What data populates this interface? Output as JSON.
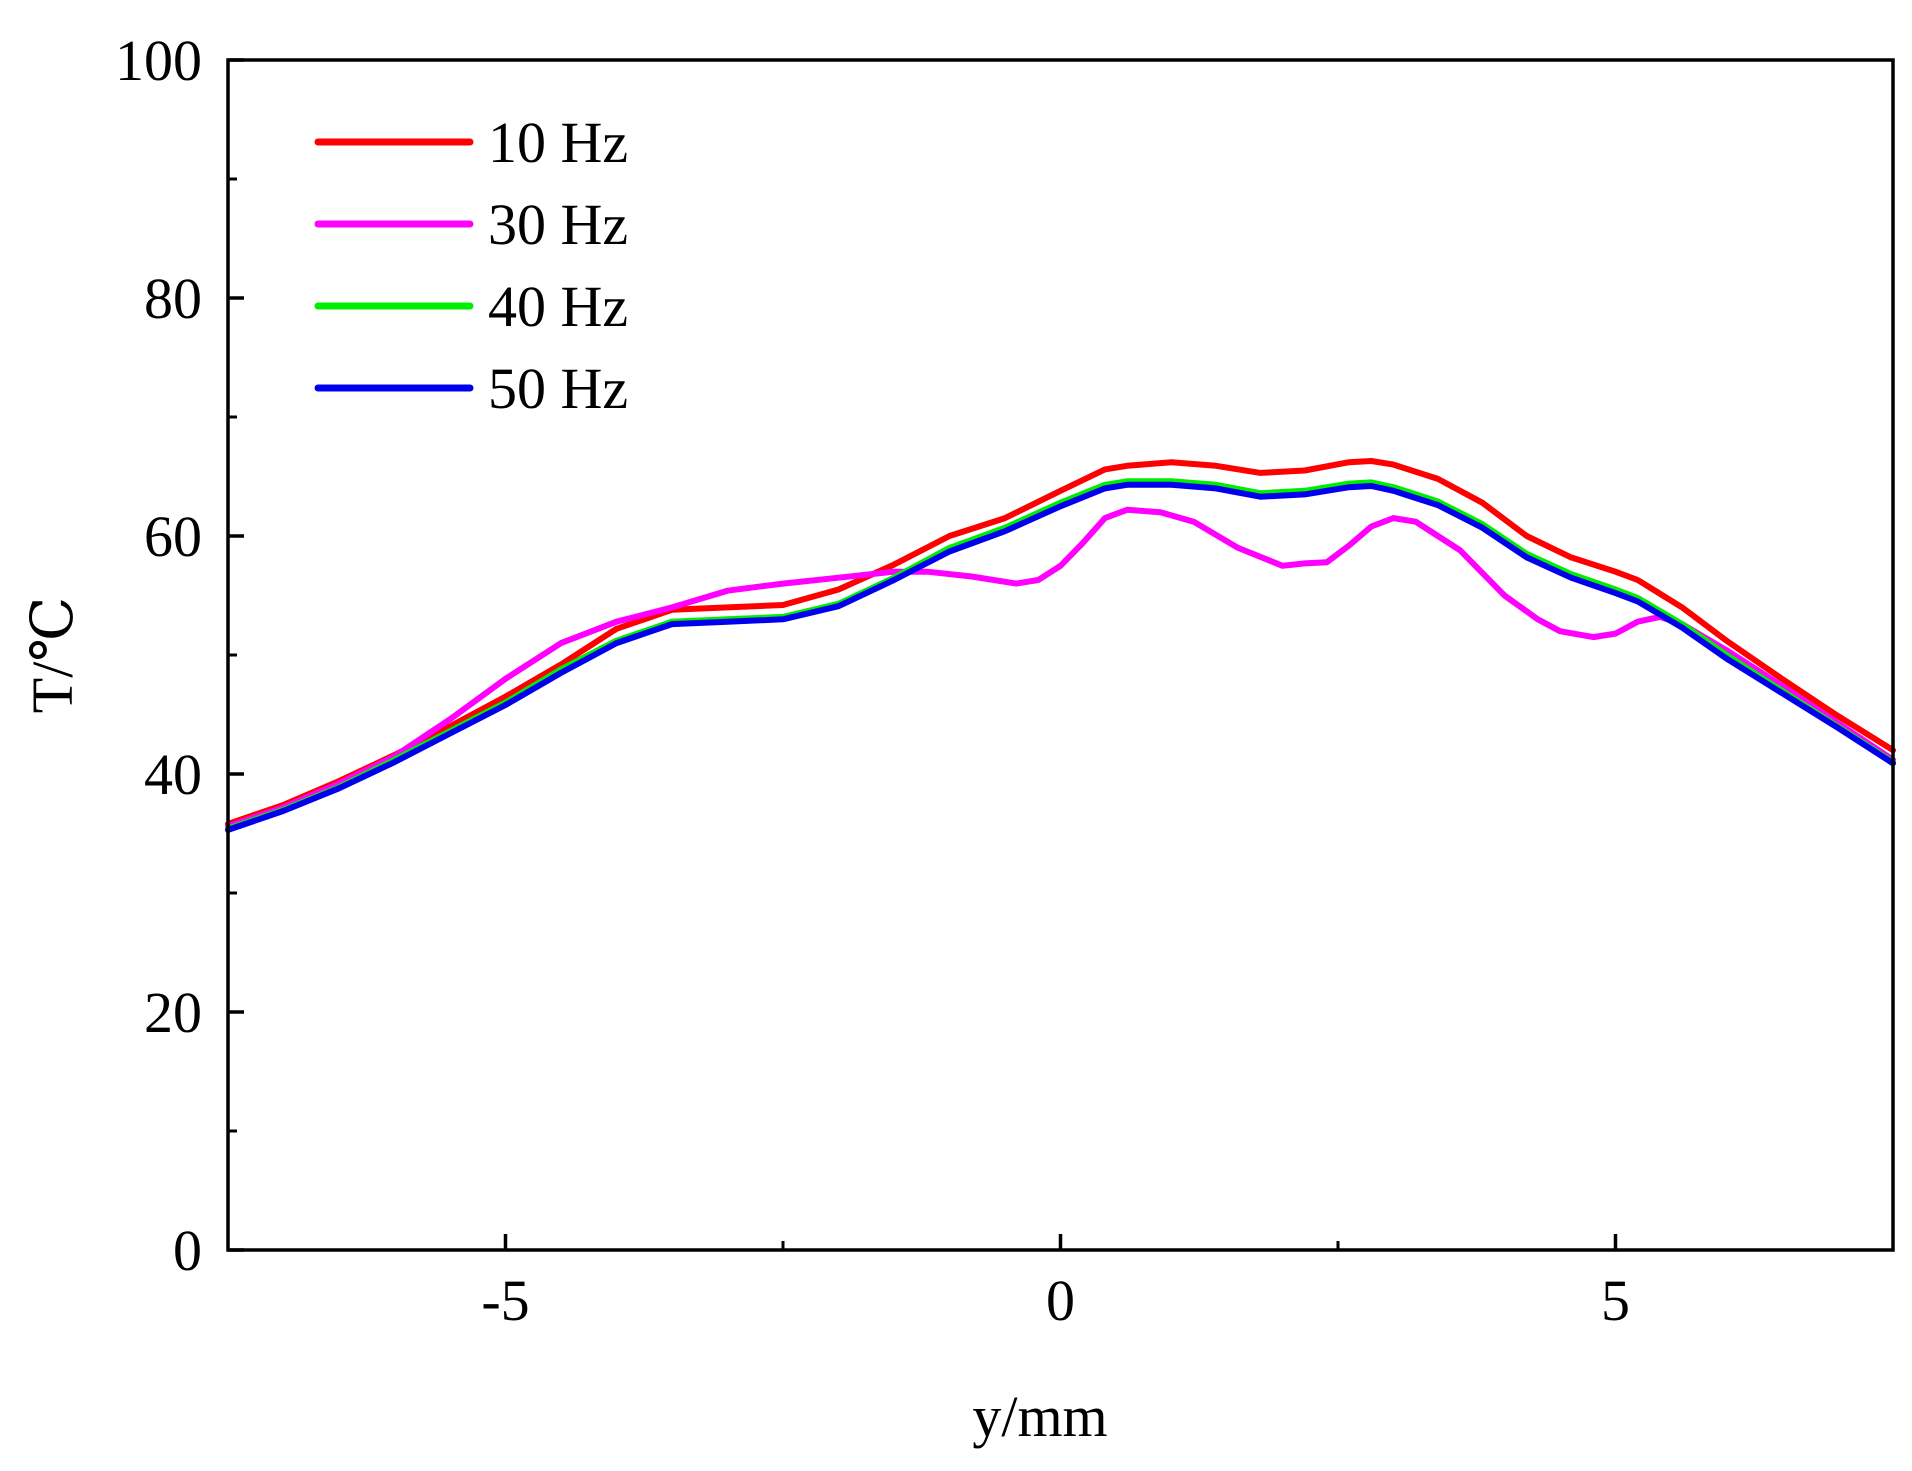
{
  "chart_data": {
    "type": "line",
    "title": "",
    "xlabel": "y/mm",
    "ylabel": "T/℃",
    "xlim": [
      -7.5,
      7.5
    ],
    "ylim": [
      0,
      100
    ],
    "xticks": [
      -5,
      0,
      5
    ],
    "xtick_labels": [
      "-5",
      "0",
      "5"
    ],
    "xminor": [
      -2.5,
      2.5
    ],
    "yticks": [
      0,
      20,
      40,
      60,
      80,
      100
    ],
    "ytick_labels": [
      "0",
      "20",
      "40",
      "60",
      "80",
      "100"
    ],
    "yminor": [
      10,
      30,
      50,
      70,
      90
    ],
    "grid": false,
    "legend_position": "top-left",
    "series": [
      {
        "name": "10 Hz",
        "color": "#ff0000",
        "x": [
          -7.5,
          -7.0,
          -6.5,
          -6.0,
          -5.5,
          -5.0,
          -4.5,
          -4.0,
          -3.5,
          -3.0,
          -2.5,
          -2.0,
          -1.5,
          -1.0,
          -0.5,
          0.0,
          0.4,
          0.6,
          1.0,
          1.4,
          1.8,
          2.2,
          2.6,
          2.8,
          3.0,
          3.4,
          3.8,
          4.2,
          4.6,
          5.0,
          5.2,
          5.6,
          6.0,
          6.5,
          7.0,
          7.5
        ],
        "y": [
          35.8,
          37.4,
          39.4,
          41.6,
          44.0,
          46.5,
          49.2,
          52.2,
          53.8,
          54.0,
          54.2,
          55.5,
          57.6,
          60.0,
          61.5,
          63.8,
          65.6,
          65.9,
          66.2,
          65.9,
          65.3,
          65.5,
          66.2,
          66.3,
          66.0,
          64.8,
          62.8,
          60.0,
          58.2,
          57.0,
          56.3,
          54.0,
          51.2,
          48.0,
          44.9,
          42.0
        ]
      },
      {
        "name": "30 Hz",
        "color": "#ff00ff",
        "x": [
          -7.5,
          -7.0,
          -6.5,
          -6.0,
          -5.5,
          -5.0,
          -4.5,
          -4.0,
          -3.5,
          -3.0,
          -2.5,
          -2.0,
          -1.5,
          -1.2,
          -0.8,
          -0.4,
          -0.2,
          0.0,
          0.2,
          0.4,
          0.6,
          0.9,
          1.2,
          1.6,
          2.0,
          2.2,
          2.4,
          2.6,
          2.8,
          3.0,
          3.2,
          3.6,
          4.0,
          4.3,
          4.5,
          4.8,
          5.0,
          5.2,
          5.4,
          5.6,
          6.0,
          6.5,
          7.0,
          7.5
        ],
        "y": [
          35.6,
          37.2,
          39.2,
          41.5,
          44.6,
          48.0,
          51.0,
          52.8,
          54.0,
          55.4,
          56.0,
          56.5,
          57.0,
          57.0,
          56.6,
          56.0,
          56.3,
          57.5,
          59.4,
          61.5,
          62.2,
          62.0,
          61.2,
          59.0,
          57.5,
          57.7,
          57.8,
          59.2,
          60.8,
          61.5,
          61.2,
          58.8,
          55.0,
          53.0,
          52.0,
          51.5,
          51.8,
          52.8,
          53.2,
          52.6,
          50.4,
          47.4,
          44.3,
          41.2
        ]
      },
      {
        "name": "40 Hz",
        "color": "#00ee00",
        "x": [
          -7.5,
          -7.0,
          -6.5,
          -6.0,
          -5.5,
          -5.0,
          -4.5,
          -4.0,
          -3.5,
          -3.0,
          -2.5,
          -2.0,
          -1.5,
          -1.0,
          -0.5,
          0.0,
          0.4,
          0.6,
          1.0,
          1.4,
          1.8,
          2.2,
          2.6,
          2.8,
          3.0,
          3.4,
          3.8,
          4.2,
          4.6,
          5.0,
          5.2,
          5.6,
          6.0,
          6.5,
          7.0,
          7.5
        ],
        "y": [
          35.4,
          37.0,
          38.9,
          41.2,
          43.6,
          46.0,
          48.8,
          51.2,
          52.8,
          53.0,
          53.2,
          54.3,
          56.5,
          59.0,
          60.7,
          62.8,
          64.3,
          64.6,
          64.6,
          64.3,
          63.6,
          63.8,
          64.4,
          64.5,
          64.1,
          62.9,
          61.0,
          58.5,
          56.8,
          55.5,
          54.8,
          52.6,
          50.0,
          47.0,
          44.0,
          41.0
        ]
      },
      {
        "name": "50 Hz",
        "color": "#0000ee",
        "x": [
          -7.5,
          -7.0,
          -6.5,
          -6.0,
          -5.5,
          -5.0,
          -4.5,
          -4.0,
          -3.5,
          -3.0,
          -2.5,
          -2.0,
          -1.5,
          -1.0,
          -0.5,
          0.0,
          0.4,
          0.6,
          1.0,
          1.4,
          1.8,
          2.2,
          2.6,
          2.8,
          3.0,
          3.4,
          3.8,
          4.2,
          4.6,
          5.0,
          5.2,
          5.6,
          6.0,
          6.5,
          7.0,
          7.5
        ],
        "y": [
          35.3,
          36.9,
          38.8,
          41.0,
          43.4,
          45.8,
          48.5,
          51.0,
          52.6,
          52.8,
          53.0,
          54.1,
          56.3,
          58.7,
          60.4,
          62.5,
          64.0,
          64.3,
          64.3,
          64.0,
          63.3,
          63.5,
          64.1,
          64.2,
          63.8,
          62.6,
          60.7,
          58.2,
          56.5,
          55.2,
          54.5,
          52.3,
          49.7,
          46.8,
          43.9,
          40.9
        ]
      }
    ]
  }
}
